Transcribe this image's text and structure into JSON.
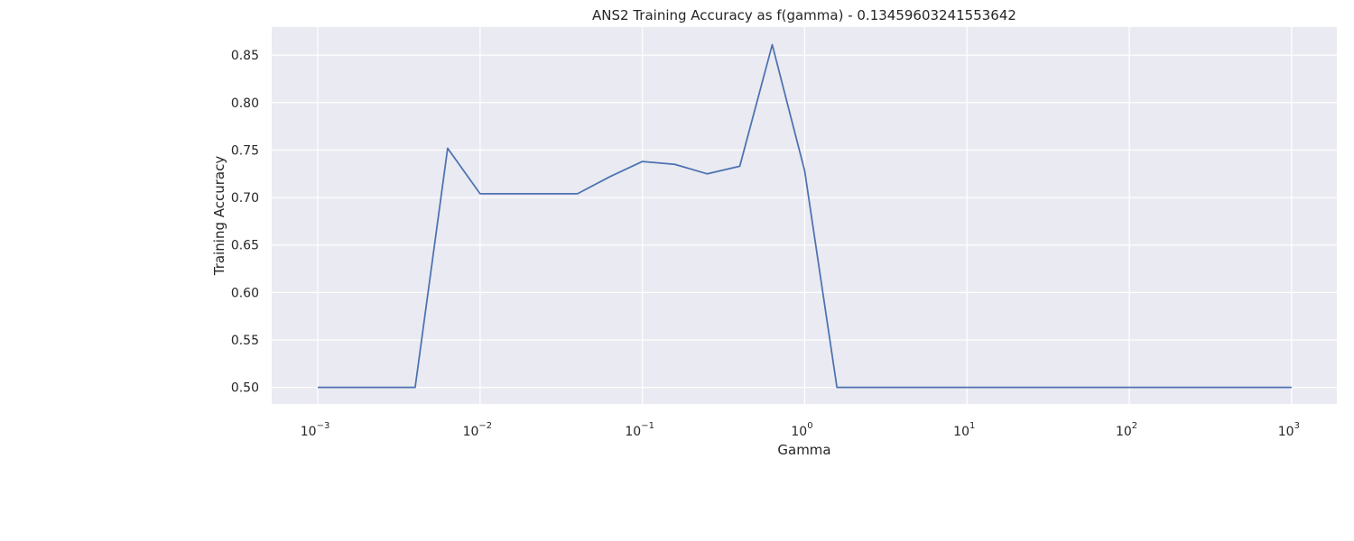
{
  "chart_data": {
    "type": "line",
    "title": "ANS2 Training Accuracy as f(gamma) - 0.13459603241553642",
    "xlabel": "Gamma",
    "ylabel": "Training Accuracy",
    "xscale": "log",
    "xlim": [
      0.00052,
      1900
    ],
    "ylim": [
      0.4826,
      0.8796
    ],
    "grid": true,
    "x_ticks": [
      {
        "base": "10",
        "exp": "−3",
        "value": 0.001
      },
      {
        "base": "10",
        "exp": "−2",
        "value": 0.01
      },
      {
        "base": "10",
        "exp": "−1",
        "value": 0.1
      },
      {
        "base": "10",
        "exp": "0",
        "value": 1
      },
      {
        "base": "10",
        "exp": "1",
        "value": 10
      },
      {
        "base": "10",
        "exp": "2",
        "value": 100
      },
      {
        "base": "10",
        "exp": "3",
        "value": 1000
      }
    ],
    "y_ticks": [
      "0.50",
      "0.55",
      "0.60",
      "0.65",
      "0.70",
      "0.75",
      "0.80",
      "0.85"
    ],
    "colors": {
      "line": "#4c72b0"
    },
    "series": [
      {
        "x": [
          0.001,
          0.00158,
          0.00251,
          0.00398,
          0.00631,
          0.01,
          0.0158,
          0.0251,
          0.0398,
          0.0631,
          0.1,
          0.158,
          0.251,
          0.398,
          0.631,
          1.0,
          1.58,
          2.51,
          3.98,
          6.31,
          10,
          15.8,
          25.1,
          39.8,
          63.1,
          100,
          158,
          251,
          398,
          631,
          1000
        ],
        "y": [
          0.5,
          0.5,
          0.5,
          0.5,
          0.752,
          0.704,
          0.704,
          0.704,
          0.704,
          0.722,
          0.738,
          0.735,
          0.725,
          0.733,
          0.861,
          0.728,
          0.5,
          0.5,
          0.5,
          0.5,
          0.5,
          0.5,
          0.5,
          0.5,
          0.5,
          0.5,
          0.5,
          0.5,
          0.5,
          0.5,
          0.5
        ]
      }
    ]
  }
}
